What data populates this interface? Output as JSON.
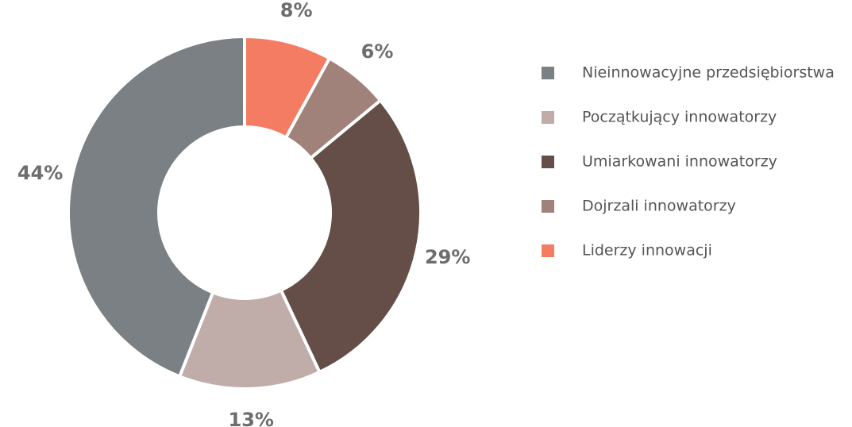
{
  "chart_data": {
    "type": "donut",
    "categories": [
      "Nieinnowacyjne przedsiębiorstwa",
      "Początkujący innowatorzy",
      "Umiarkowani innowatorzy",
      "Dojrzali innowatorzy",
      "Liderzy innowacji"
    ],
    "values": [
      44,
      13,
      29,
      6,
      8
    ],
    "value_labels": [
      "44%",
      "13%",
      "29%",
      "6%",
      "8%"
    ],
    "colors": [
      "#7a8083",
      "#c0aca8",
      "#654e48",
      "#a0827a",
      "#f47c62"
    ],
    "legend": "right"
  }
}
